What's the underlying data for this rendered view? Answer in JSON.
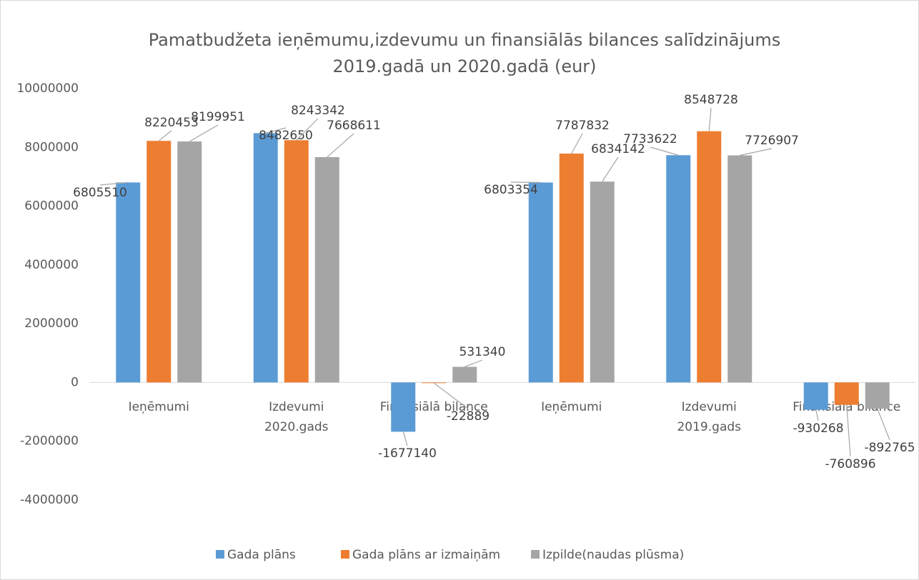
{
  "chart_data": {
    "type": "bar",
    "title": "Pamatbudžeta ieņēmumu,izdevumu un finansiālās bilances salīdzinājums 2019.gadā un 2020.gadā (eur)",
    "groups": [
      {
        "name": "2020.gads",
        "categories": [
          "Ieņēmumi",
          "Izdevumi",
          "Finansiālā bilance"
        ]
      },
      {
        "name": "2019.gads",
        "categories": [
          "Ieņēmumi",
          "Izdevumi",
          "Finansiālā bilance"
        ]
      }
    ],
    "series": [
      {
        "name": "Gada plāns",
        "color": "#5b9bd5",
        "values": [
          6805510,
          8482650,
          -1677140,
          6803354,
          7733622,
          -930268
        ]
      },
      {
        "name": "Gada plāns ar izmaiņām",
        "color": "#ed7d31",
        "values": [
          8220453,
          8243342,
          -22889,
          7787832,
          8548728,
          -760896
        ]
      },
      {
        "name": "Izpilde(naudas plūsma)",
        "color": "#a5a5a5",
        "values": [
          8199951,
          7668611,
          531340,
          6834142,
          7726907,
          -892765
        ]
      }
    ],
    "ylim": [
      -4000000,
      10000000
    ],
    "yticks": [
      -4000000,
      -2000000,
      0,
      2000000,
      4000000,
      6000000,
      8000000,
      10000000
    ],
    "legend": "bottom"
  }
}
